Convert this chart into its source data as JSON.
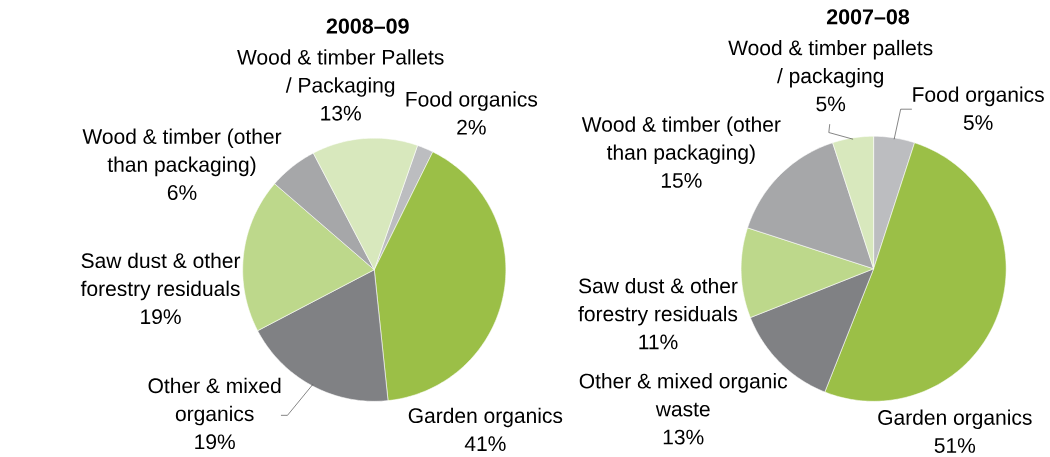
{
  "chart_data": [
    {
      "type": "pie",
      "title": "2008–09",
      "categories": [
        "Food organics",
        "Garden organics",
        "Other & mixed organics",
        "Saw dust & other forestry residuals",
        "Wood & timber (other than packaging)",
        "Wood & timber Pallets / Packaging"
      ],
      "values": [
        2,
        41,
        19,
        19,
        6,
        13
      ],
      "value_labels": [
        "2%",
        "41%",
        "19%",
        "19%",
        "6%",
        "13%"
      ],
      "colors": [
        "#bcbdc0",
        "#9bbf47",
        "#808184",
        "#bdd88b",
        "#a6a7a9",
        "#d8e8bd"
      ]
    },
    {
      "type": "pie",
      "title": "2007–08",
      "categories": [
        "Food organics",
        "Garden organics",
        "Other & mixed organic waste",
        "Saw dust & other forestry residuals",
        "Wood & timber (other than packaging)",
        "Wood & timber pallets / packaging"
      ],
      "values": [
        5,
        51,
        13,
        11,
        15,
        5
      ],
      "value_labels": [
        "5%",
        "51%",
        "13%",
        "11%",
        "15%",
        "5%"
      ],
      "colors": [
        "#bcbdc0",
        "#9bbf47",
        "#808184",
        "#bdd88b",
        "#a6a7a9",
        "#d8e8bd"
      ]
    }
  ]
}
